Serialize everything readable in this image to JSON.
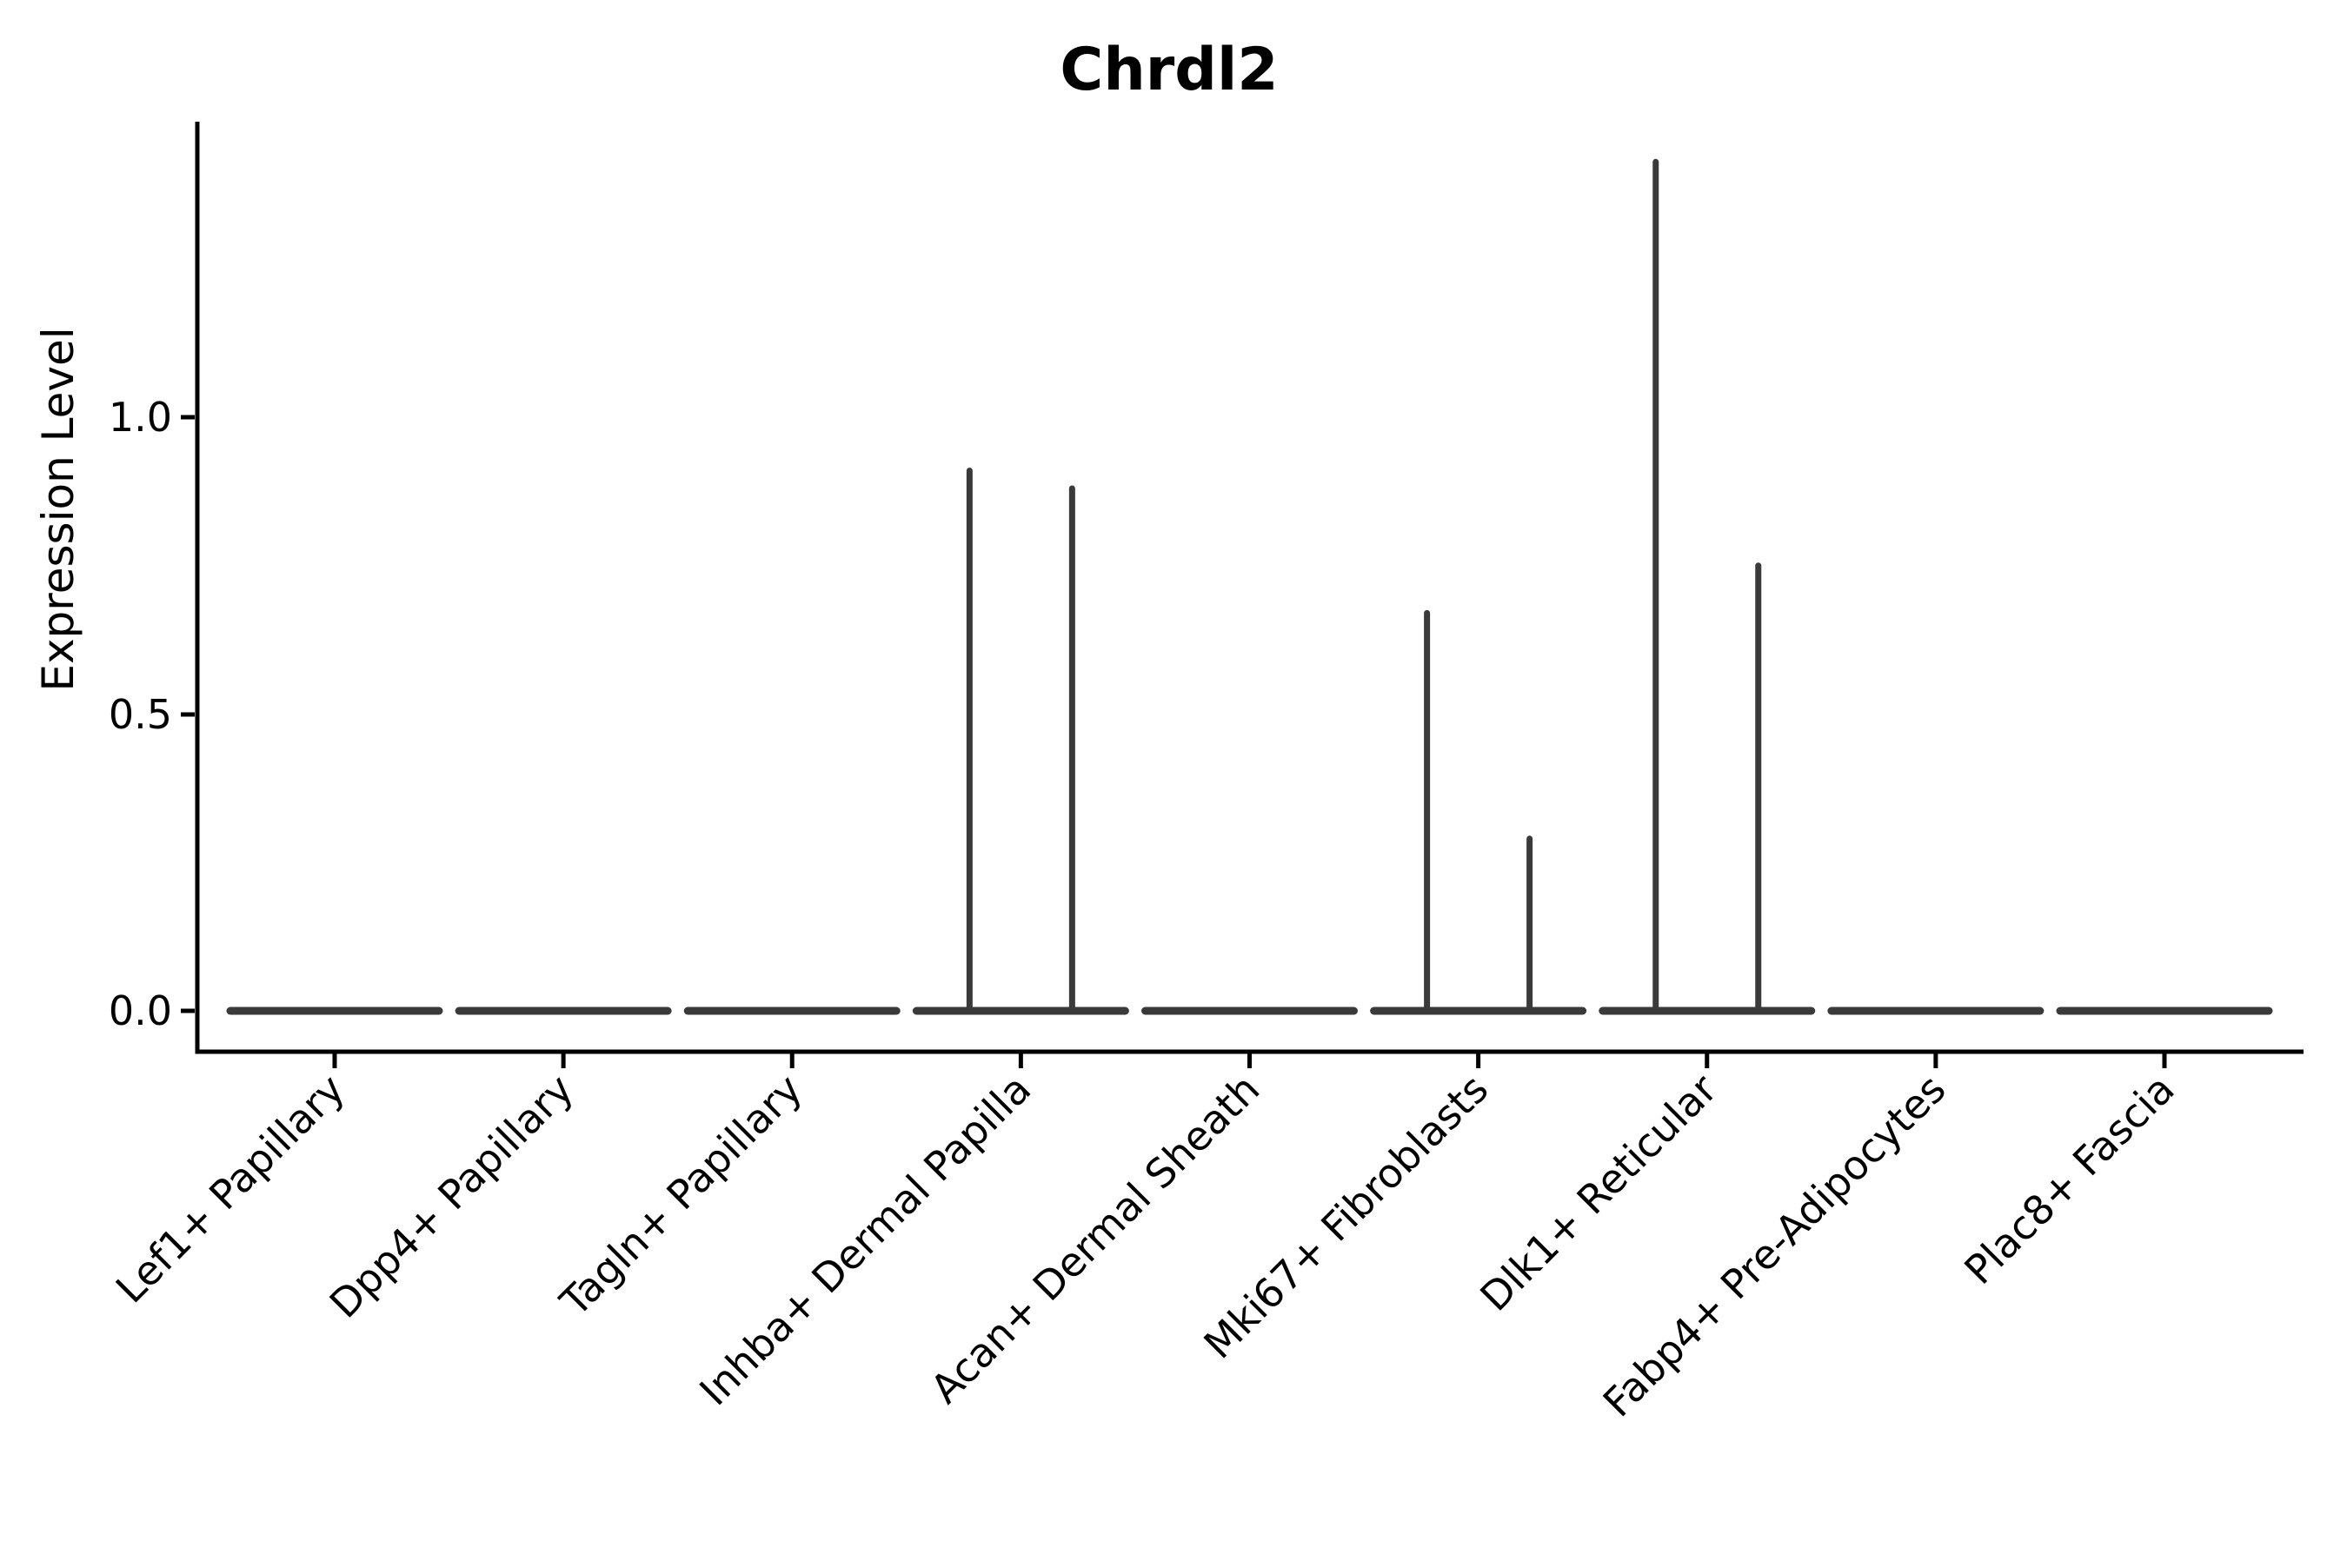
{
  "page": {
    "background": "#ffffff"
  },
  "chart_data": {
    "type": "violin",
    "title": "Chrdl2",
    "ylabel": "Expression Level",
    "xlabel": "",
    "ytick_labels": [
      "0.0",
      "0.5",
      "1.0"
    ],
    "ytick_values": [
      0.0,
      0.5,
      1.0
    ],
    "ylim": [
      -0.07,
      1.5
    ],
    "grid": false,
    "legend": false,
    "categories": [
      "Lef1+ Papillary",
      "Dpp4+ Papillary",
      "Tagln+ Papillary",
      "Inhba+ Dermal Papilla",
      "Acan+ Dermal Sheath",
      "Mki67+ Fibroblasts",
      "Dlk1+ Reticular",
      "Fabp4+ Pre-Adipocytes",
      "Plac8+ Fascia"
    ],
    "violins": [
      {
        "category": "Lef1+ Papillary",
        "spike_heights": [
          0,
          0
        ]
      },
      {
        "category": "Dpp4+ Papillary",
        "spike_heights": [
          0,
          0
        ]
      },
      {
        "category": "Tagln+ Papillary",
        "spike_heights": [
          0,
          0
        ]
      },
      {
        "category": "Inhba+ Dermal Papilla",
        "spike_heights": [
          0.91,
          0.88
        ]
      },
      {
        "category": "Acan+ Dermal Sheath",
        "spike_heights": [
          0,
          0
        ]
      },
      {
        "category": "Mki67+ Fibroblasts",
        "spike_heights": [
          0.67,
          0.29
        ]
      },
      {
        "category": "Dlk1+ Reticular",
        "spike_heights": [
          1.43,
          0.75
        ]
      },
      {
        "category": "Fabp4+ Pre-Adipocytes",
        "spike_heights": [
          0,
          0
        ]
      },
      {
        "category": "Plac8+ Fascia",
        "spike_heights": [
          0,
          0
        ]
      }
    ],
    "colors": {
      "violin_stroke": "#3a3a3a",
      "axis": "#000000",
      "text": "#000000",
      "background": "#ffffff"
    }
  }
}
